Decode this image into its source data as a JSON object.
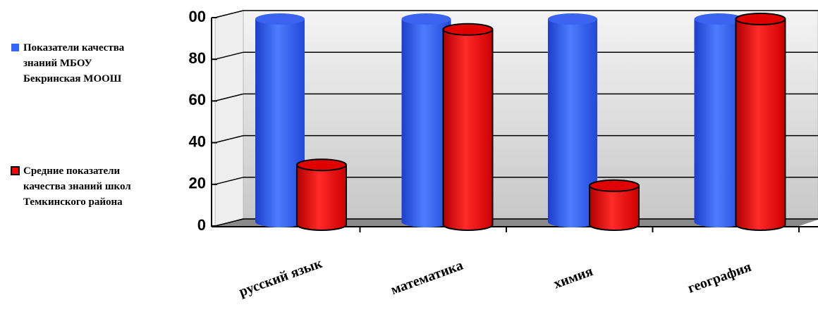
{
  "chart_data": {
    "type": "bar3d",
    "categories": [
      "русский язык",
      "математика",
      "химия",
      "география"
    ],
    "series": [
      {
        "name": "Показатели качества знаний МБОУ Бекринская МООШ",
        "color": "#3366ff",
        "values": [
          100,
          100,
          100,
          100
        ]
      },
      {
        "name": "Средние показатели качества знаний школ Темкинского района",
        "color": "#ff0000",
        "values": [
          30,
          95,
          20,
          100
        ]
      }
    ],
    "ylim": [
      0,
      100
    ],
    "yticks": [
      0,
      20,
      40,
      60,
      80,
      {
        "value": 100,
        "label": "00"
      }
    ],
    "grid": true,
    "legend": "left"
  }
}
